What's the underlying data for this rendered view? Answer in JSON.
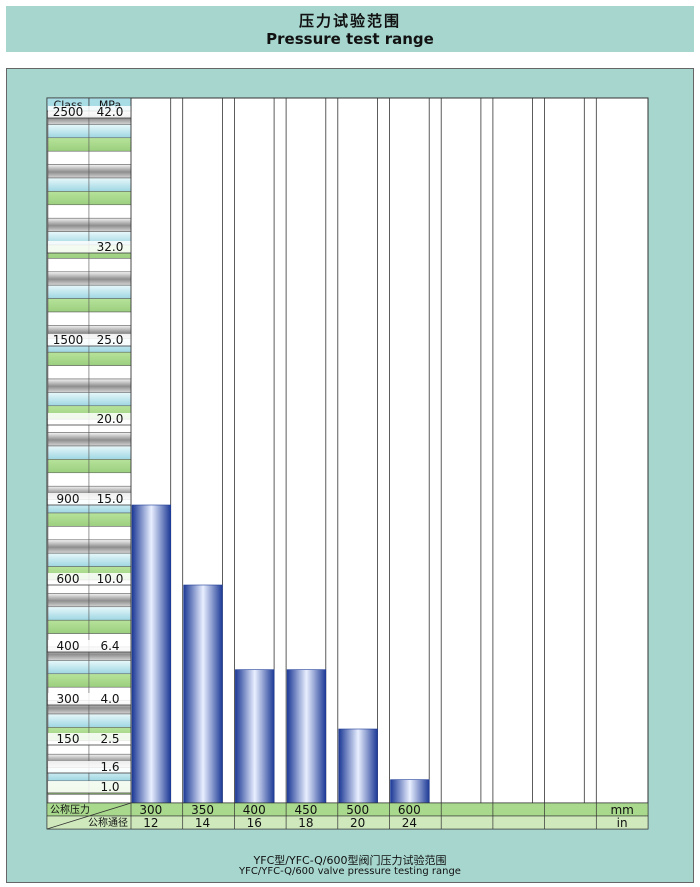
{
  "header": {
    "title_cn": "压力试验范围",
    "title_en": "Pressure test range"
  },
  "caption": {
    "line1": "YFC型/YFC-Q/600型阀门压力试验范围",
    "line2": "YFC/YFC-Q/600 valve pressure testing range"
  },
  "colors": {
    "background": "#a7d6ce",
    "bar": "#2d4aa8",
    "row_green": "#a9d98c",
    "row_blue": "#a9dde6",
    "row_gray": "#a8a8a8"
  },
  "chart_data": {
    "type": "bar",
    "scale_header": {
      "class_label": "Class",
      "unit_label": "MPa"
    },
    "pressure_scale": [
      {
        "class": "2500",
        "mpa": "42.0"
      },
      {
        "class": "",
        "mpa": "32.0"
      },
      {
        "class": "1500",
        "mpa": "25.0"
      },
      {
        "class": "",
        "mpa": "20.0"
      },
      {
        "class": "900",
        "mpa": "15.0"
      },
      {
        "class": "600",
        "mpa": "10.0"
      },
      {
        "class": "400",
        "mpa": "6.4"
      },
      {
        "class": "300",
        "mpa": "4.0"
      },
      {
        "class": "150",
        "mpa": "2.5"
      },
      {
        "class": "",
        "mpa": "1.6"
      },
      {
        "class": "",
        "mpa": "1.0"
      }
    ],
    "categories_mm": [
      "300",
      "350",
      "400",
      "450",
      "500",
      "600",
      "",
      "",
      "",
      ""
    ],
    "categories_in": [
      "12",
      "14",
      "16",
      "18",
      "20",
      "24",
      "",
      "",
      "",
      ""
    ],
    "values_mpa": [
      15.0,
      10.0,
      5.6,
      5.6,
      3.1,
      1.4
    ],
    "row_label_top": "公称压力",
    "row_label_bottom": "公称通径",
    "unit_mm": "mm",
    "unit_in": "in"
  }
}
